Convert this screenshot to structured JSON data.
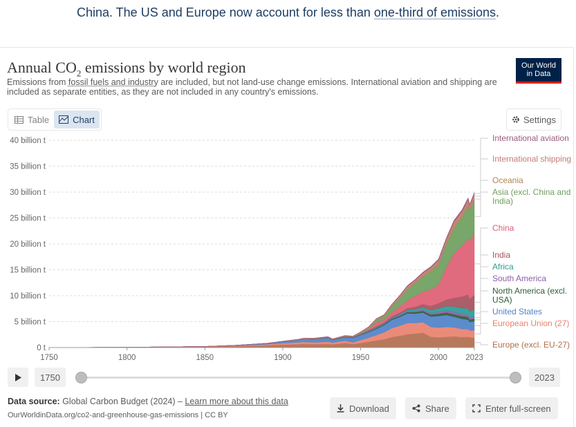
{
  "headline": {
    "prefix": "China. The US and Europe now account for less than ",
    "link": "one-third of emissions",
    "suffix": "."
  },
  "logo": {
    "line1": "Our World",
    "line2": "in Data"
  },
  "title": {
    "text": "Annual CO",
    "sub": "2",
    "rest": " emissions by world region"
  },
  "subtitle": {
    "part1": "Emissions from ",
    "link": "fossil fuels and industry",
    "part2": " are included, but not land-use change emissions. International aviation and shipping are included as separate entities, as they are not included in any country's emissions."
  },
  "tabs": [
    {
      "label": "Table",
      "icon": "table-icon"
    },
    {
      "label": "Chart",
      "icon": "chart-icon",
      "active": true
    }
  ],
  "settings_label": "Settings",
  "timeline": {
    "start_label": "1750",
    "end_label": "2023"
  },
  "footer": {
    "source_label": "Data source:",
    "source_text": " Global Carbon Budget (2024) – ",
    "learn_more": "Learn more about this data",
    "url": "OurWorldinData.org/co2-and-greenhouse-gas-emissions | CC BY"
  },
  "buttons": {
    "download": "Download",
    "share": "Share",
    "fullscreen": "Enter full-screen"
  },
  "chart_data": {
    "type": "area",
    "stacked": true,
    "title": "Annual CO₂ emissions by world region",
    "ylabel": "",
    "xlabel": "",
    "ylim": [
      0,
      40
    ],
    "xlim": [
      1750,
      2023
    ],
    "y_ticks": [
      "0 t",
      "5 billion t",
      "10 billion t",
      "15 billion t",
      "20 billion t",
      "25 billion t",
      "30 billion t",
      "35 billion t",
      "40 billion t"
    ],
    "x_ticks": [
      "1750",
      "1800",
      "1850",
      "1900",
      "1950",
      "2000",
      "2023"
    ],
    "unit": "billion t",
    "x": [
      1750,
      1800,
      1850,
      1870,
      1890,
      1900,
      1910,
      1913,
      1920,
      1929,
      1932,
      1940,
      1945,
      1950,
      1955,
      1960,
      1965,
      1970,
      1975,
      1980,
      1985,
      1990,
      1995,
      2000,
      2005,
      2010,
      2015,
      2019,
      2020,
      2023
    ],
    "series": [
      {
        "name": "Europe (excl. EU-27)",
        "color": "#b16e4e",
        "values": [
          0.01,
          0.04,
          0.15,
          0.25,
          0.42,
          0.55,
          0.62,
          0.68,
          0.62,
          0.68,
          0.58,
          0.85,
          0.65,
          0.85,
          1.1,
          1.35,
          1.6,
          2.0,
          2.25,
          2.55,
          2.7,
          2.85,
          2.05,
          1.95,
          2.05,
          2.15,
          2.0,
          2.05,
          1.95,
          1.9
        ]
      },
      {
        "name": "European Union (27)",
        "color": "#e8816f",
        "values": [
          0.0,
          0.01,
          0.05,
          0.12,
          0.22,
          0.3,
          0.38,
          0.42,
          0.38,
          0.45,
          0.38,
          0.5,
          0.35,
          0.6,
          0.8,
          1.05,
          1.35,
          1.75,
          1.95,
          2.2,
          2.05,
          2.05,
          1.95,
          1.9,
          1.95,
          1.75,
          1.6,
          1.5,
          1.35,
          1.45
        ]
      },
      {
        "name": "United States",
        "color": "#4f82c9",
        "values": [
          0.0,
          0.0,
          0.02,
          0.07,
          0.17,
          0.3,
          0.45,
          0.55,
          0.6,
          0.75,
          0.5,
          0.65,
          0.85,
          0.95,
          1.05,
          1.2,
          1.35,
          1.6,
          1.7,
          1.85,
          1.8,
          1.85,
          2.0,
          2.25,
          2.3,
          2.05,
          1.95,
          1.85,
          1.65,
          1.75
        ]
      },
      {
        "name": "North America (excl. USA)",
        "color": "#2e5a34",
        "values": [
          0.0,
          0.0,
          0.0,
          0.0,
          0.01,
          0.01,
          0.02,
          0.02,
          0.03,
          0.03,
          0.03,
          0.04,
          0.05,
          0.06,
          0.09,
          0.12,
          0.14,
          0.18,
          0.2,
          0.24,
          0.28,
          0.32,
          0.36,
          0.4,
          0.45,
          0.47,
          0.5,
          0.5,
          0.45,
          0.48
        ]
      },
      {
        "name": "South America",
        "color": "#8d5ea8",
        "values": [
          0.0,
          0.0,
          0.0,
          0.0,
          0.0,
          0.01,
          0.01,
          0.01,
          0.02,
          0.02,
          0.02,
          0.03,
          0.04,
          0.06,
          0.07,
          0.09,
          0.1,
          0.13,
          0.16,
          0.21,
          0.23,
          0.26,
          0.3,
          0.35,
          0.39,
          0.42,
          0.43,
          0.41,
          0.38,
          0.41
        ]
      },
      {
        "name": "Africa",
        "color": "#2a9b96",
        "values": [
          0.0,
          0.0,
          0.0,
          0.0,
          0.0,
          0.0,
          0.0,
          0.0,
          0.01,
          0.01,
          0.01,
          0.02,
          0.03,
          0.06,
          0.09,
          0.12,
          0.13,
          0.15,
          0.2,
          0.25,
          0.35,
          0.45,
          0.55,
          0.7,
          0.85,
          1.05,
          1.15,
          1.25,
          1.2,
          1.35
        ]
      },
      {
        "name": "India",
        "color": "#a5505e",
        "values": [
          0.0,
          0.0,
          0.0,
          0.0,
          0.01,
          0.02,
          0.03,
          0.03,
          0.03,
          0.04,
          0.04,
          0.05,
          0.05,
          0.07,
          0.09,
          0.12,
          0.15,
          0.2,
          0.25,
          0.3,
          0.45,
          0.6,
          0.8,
          1.0,
          1.25,
          1.7,
          2.2,
          2.65,
          2.4,
          2.8
        ]
      },
      {
        "name": "China",
        "color": "#de5e73",
        "values": [
          0.0,
          0.0,
          0.0,
          0.0,
          0.0,
          0.0,
          0.0,
          0.0,
          0.01,
          0.01,
          0.01,
          0.02,
          0.02,
          0.08,
          0.25,
          0.8,
          0.5,
          0.8,
          1.2,
          1.5,
          2.1,
          2.4,
          3.2,
          3.6,
          6.3,
          8.6,
          9.8,
          10.8,
          11.1,
          12.0
        ]
      },
      {
        "name": "Asia (excl. China and India)",
        "color": "#6e9e5d",
        "values": [
          0.0,
          0.0,
          0.0,
          0.0,
          0.0,
          0.0,
          0.01,
          0.01,
          0.02,
          0.03,
          0.03,
          0.05,
          0.05,
          0.15,
          0.25,
          0.45,
          0.65,
          1.05,
          1.55,
          2.1,
          2.4,
          2.9,
          3.4,
          3.8,
          4.3,
          4.9,
          5.4,
          6.3,
          5.9,
          6.3
        ]
      },
      {
        "name": "Oceania",
        "color": "#b18552",
        "values": [
          0.0,
          0.0,
          0.0,
          0.0,
          0.0,
          0.01,
          0.01,
          0.01,
          0.02,
          0.02,
          0.02,
          0.03,
          0.03,
          0.04,
          0.05,
          0.07,
          0.09,
          0.12,
          0.15,
          0.2,
          0.24,
          0.3,
          0.34,
          0.38,
          0.43,
          0.46,
          0.45,
          0.45,
          0.43,
          0.43
        ]
      },
      {
        "name": "International shipping",
        "color": "#c37b73",
        "values": [
          0.0,
          0.0,
          0.0,
          0.0,
          0.0,
          0.03,
          0.05,
          0.06,
          0.06,
          0.07,
          0.06,
          0.08,
          0.08,
          0.1,
          0.13,
          0.16,
          0.2,
          0.27,
          0.32,
          0.4,
          0.38,
          0.38,
          0.43,
          0.5,
          0.6,
          0.72,
          0.7,
          0.72,
          0.64,
          0.7
        ]
      },
      {
        "name": "International aviation",
        "color": "#9b5a80",
        "values": [
          0.0,
          0.0,
          0.0,
          0.0,
          0.0,
          0.0,
          0.0,
          0.0,
          0.0,
          0.0,
          0.0,
          0.0,
          0.01,
          0.02,
          0.03,
          0.05,
          0.08,
          0.12,
          0.14,
          0.16,
          0.18,
          0.21,
          0.23,
          0.26,
          0.3,
          0.33,
          0.38,
          0.42,
          0.22,
          0.36
        ]
      }
    ],
    "legend_placement": "right (end labels)",
    "grid": true
  }
}
